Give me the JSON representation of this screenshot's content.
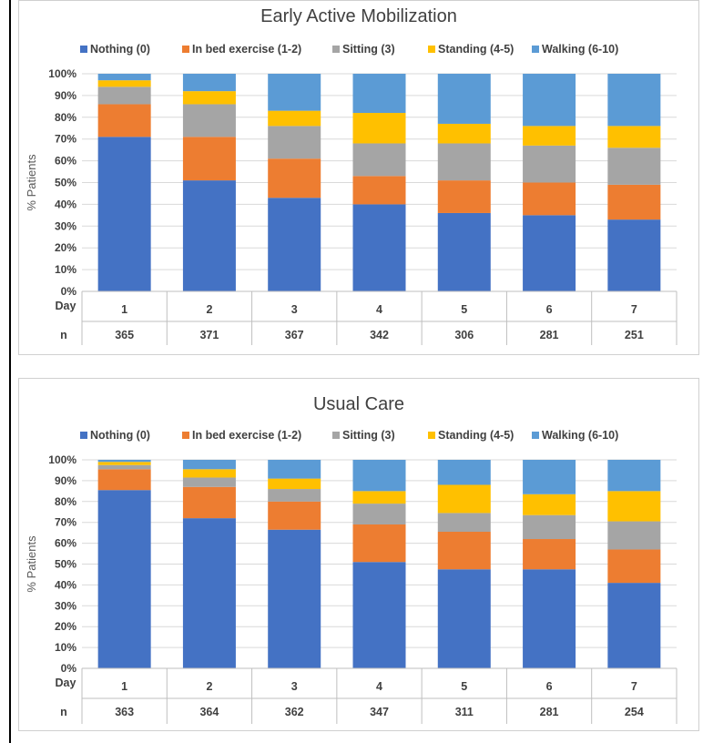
{
  "legend": [
    {
      "label": "Nothing (0)",
      "color": "#4472C4"
    },
    {
      "label": "In bed exercise (1-2)",
      "color": "#ED7D31"
    },
    {
      "label": "Sitting (3)",
      "color": "#A5A5A5"
    },
    {
      "label": "Standing (4-5)",
      "color": "#FFC000"
    },
    {
      "label": "Walking (6-10)",
      "color": "#5B9BD5"
    }
  ],
  "chart_data": [
    {
      "type": "bar",
      "stacked": true,
      "title": "Early Active Mobilization",
      "ylabel": "% Patients",
      "ylim": [
        0,
        100
      ],
      "yticks": [
        "0%",
        "10%",
        "20%",
        "30%",
        "40%",
        "50%",
        "60%",
        "70%",
        "80%",
        "90%",
        "100%"
      ],
      "table_rows": [
        {
          "label": "Day",
          "values": [
            "1",
            "2",
            "3",
            "4",
            "5",
            "6",
            "7"
          ]
        },
        {
          "label": "n",
          "values": [
            "365",
            "371",
            "367",
            "342",
            "306",
            "281",
            "251"
          ]
        }
      ],
      "categories": [
        "1",
        "2",
        "3",
        "4",
        "5",
        "6",
        "7"
      ],
      "series": [
        {
          "name": "Nothing (0)",
          "values": [
            71,
            51,
            43,
            40,
            36,
            35,
            33
          ]
        },
        {
          "name": "In bed exercise (1-2)",
          "values": [
            15,
            20,
            18,
            13,
            15,
            15,
            16
          ]
        },
        {
          "name": "Sitting (3)",
          "values": [
            8,
            15,
            15,
            15,
            17,
            17,
            17
          ]
        },
        {
          "name": "Standing (4-5)",
          "values": [
            3,
            6,
            7,
            14,
            9,
            9,
            10
          ]
        },
        {
          "name": "Walking (6-10)",
          "values": [
            3,
            8,
            17,
            18,
            23,
            24,
            24
          ]
        }
      ]
    },
    {
      "type": "bar",
      "stacked": true,
      "title": "Usual Care",
      "ylabel": "% Patients",
      "ylim": [
        0,
        100
      ],
      "yticks": [
        "0%",
        "10%",
        "20%",
        "30%",
        "40%",
        "50%",
        "60%",
        "70%",
        "80%",
        "90%",
        "100%"
      ],
      "table_rows": [
        {
          "label": "Day",
          "values": [
            "1",
            "2",
            "3",
            "4",
            "5",
            "6",
            "7"
          ]
        },
        {
          "label": "n",
          "values": [
            "363",
            "364",
            "362",
            "347",
            "311",
            "281",
            "254"
          ]
        }
      ],
      "categories": [
        "1",
        "2",
        "3",
        "4",
        "5",
        "6",
        "7"
      ],
      "series": [
        {
          "name": "Nothing (0)",
          "values": [
            85.5,
            72,
            66.5,
            51,
            47.5,
            47.5,
            41
          ]
        },
        {
          "name": "In bed exercise (1-2)",
          "values": [
            10,
            15,
            13.5,
            18,
            18,
            14.5,
            16
          ]
        },
        {
          "name": "Sitting (3)",
          "values": [
            2,
            4.5,
            6,
            10,
            9,
            11.5,
            13.5
          ]
        },
        {
          "name": "Standing (4-5)",
          "values": [
            1.5,
            4,
            5,
            6,
            13.5,
            10,
            14.5
          ]
        },
        {
          "name": "Walking (6-10)",
          "values": [
            1,
            4.5,
            9,
            15,
            12,
            16.5,
            15
          ]
        }
      ]
    }
  ]
}
